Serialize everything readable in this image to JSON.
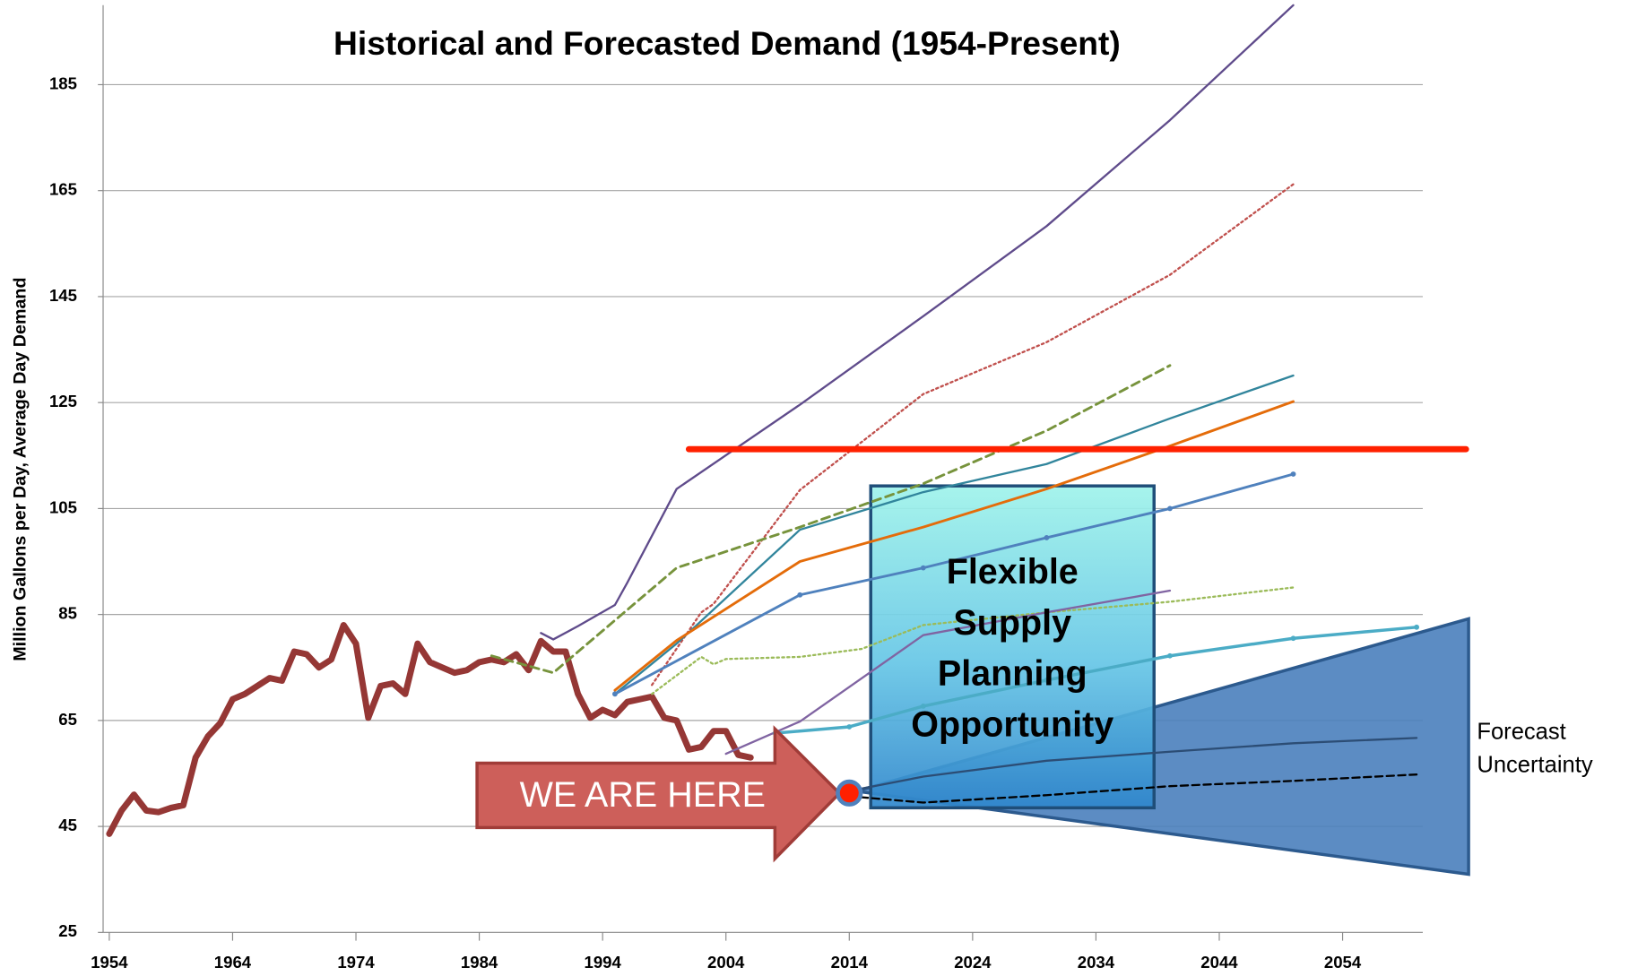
{
  "chart_data": {
    "type": "line",
    "title": "Historical and Forecasted Demand (1954-Present)",
    "y_label": "Million Gallons per Day, Average Day Demand",
    "xlim": [
      1953.5,
      2060.5
    ],
    "ylim": [
      25,
      200
    ],
    "xticks": [
      1954,
      1964,
      1974,
      1984,
      1994,
      2004,
      2014,
      2024,
      2034,
      2044,
      2054
    ],
    "yticks": [
      25,
      45,
      65,
      85,
      105,
      125,
      145,
      165,
      185
    ],
    "grid": true,
    "series": [
      {
        "color": "#953735",
        "width": 6,
        "x": [
          1954,
          1955,
          1956,
          1957,
          1958,
          1959,
          1960,
          1961,
          1962,
          1963,
          1964,
          1965,
          1966,
          1967,
          1968,
          1969,
          1970,
          1971,
          1972,
          1973,
          1974,
          1975,
          1976,
          1977,
          1978,
          1979,
          1980,
          1981,
          1982,
          1983,
          1984,
          1985,
          1986,
          1987,
          1988,
          1989,
          1990,
          1991,
          1992,
          1993,
          1994,
          1995,
          1996,
          1997,
          1998,
          1999,
          2000,
          2001,
          2002,
          2003,
          2004,
          2005,
          2006
        ],
        "values": [
          43.6,
          48,
          51,
          48,
          47.7,
          48.5,
          49,
          58,
          62,
          64.5,
          69,
          70,
          71.5,
          73,
          72.5,
          78,
          77.5,
          75,
          76.5,
          83,
          79.5,
          65.5,
          71.5,
          72,
          70,
          79.5,
          76,
          75,
          74,
          74.5,
          76,
          76.5,
          76,
          77.5,
          74.5,
          80,
          78,
          78,
          70,
          65.5,
          67,
          66,
          68.5,
          69,
          69.5,
          65.5,
          65,
          59.5,
          60,
          63,
          63,
          58.5,
          58
        ]
      },
      {
        "color": "#5f4b8b",
        "width": 2,
        "x": [
          1989,
          1990,
          1992,
          1995,
          1996,
          2000,
          2010,
          2020,
          2030,
          2040,
          2050
        ],
        "values": [
          81.5,
          80.3,
          82.8,
          86.8,
          91,
          108.7,
          124.6,
          141.3,
          158.3,
          178.3,
          200
        ]
      },
      {
        "color": "#c0504d",
        "width": 2,
        "dash": "2 3",
        "x": [
          1998,
          2002,
          2003,
          2010,
          2020,
          2030,
          2040,
          2050
        ],
        "values": [
          71.7,
          85.4,
          87,
          108.5,
          126.6,
          136.4,
          149.1,
          166.2
        ]
      },
      {
        "color": "#77933c",
        "width": 2.5,
        "dash": "8 5",
        "x": [
          1985,
          1990,
          2000,
          2010,
          2020,
          2030,
          2040
        ],
        "values": [
          77.2,
          74,
          93.8,
          101.5,
          109.7,
          119.7,
          132
        ]
      },
      {
        "color": "#31859c",
        "width": 2,
        "x": [
          1995,
          2000,
          2010,
          2020,
          2030,
          2040,
          2050
        ],
        "values": [
          70,
          79.5,
          101,
          108.1,
          113.4,
          122,
          130.1
        ]
      },
      {
        "color": "#e46c0a",
        "width": 2.5,
        "x": [
          1995,
          2000,
          2010,
          2020,
          2030,
          2040,
          2050
        ],
        "values": [
          70.7,
          80.1,
          95,
          101.5,
          108.7,
          116.8,
          125.2
        ]
      },
      {
        "color": "#4f81bd",
        "width": 2.5,
        "markers": true,
        "x": [
          1995,
          2010,
          2020,
          2030,
          2040,
          2050
        ],
        "values": [
          70,
          88.7,
          93.8,
          99.5,
          105,
          111.5
        ]
      },
      {
        "color": "#9bbb59",
        "width": 2,
        "dash": "2 3",
        "x": [
          1998,
          2002,
          2003,
          2004,
          2010,
          2015,
          2020,
          2030,
          2040,
          2050
        ],
        "values": [
          70,
          77,
          75.6,
          76.6,
          77,
          78.5,
          83,
          85.4,
          87.4,
          90.1
        ]
      },
      {
        "color": "#8064a2",
        "width": 2,
        "x": [
          2004,
          2010,
          2020,
          2030,
          2040
        ],
        "values": [
          58.7,
          64.8,
          81.1,
          85.4,
          89.5
        ]
      },
      {
        "color": "#4bacc6",
        "width": 3,
        "markers": true,
        "x": [
          2008,
          2014,
          2020,
          2030,
          2040,
          2050,
          2060
        ],
        "values": [
          62.6,
          63.8,
          67.7,
          72.6,
          77.2,
          80.5,
          82.6
        ]
      },
      {
        "color": "#2c4d75",
        "width": 2,
        "x": [
          2014,
          2020,
          2030,
          2040,
          2050,
          2060
        ],
        "values": [
          51.7,
          54.4,
          57.4,
          59.1,
          60.7,
          61.7
        ]
      },
      {
        "color": "#000000",
        "width": 2,
        "dash": "7 4",
        "x": [
          2014,
          2020,
          2030,
          2040,
          2050,
          2060
        ],
        "values": [
          50.7,
          49.5,
          50.9,
          52.6,
          53.6,
          54.8
        ]
      },
      {
        "color": "#ff2000",
        "width": 6,
        "x": [
          2001,
          2064
        ],
        "values": [
          116.2,
          116.2
        ]
      }
    ],
    "box_text": [
      "Flexible",
      "Supply",
      "Planning",
      "Opportunity"
    ],
    "arrow_text": "WE ARE HERE",
    "current_point": {
      "x": 2014,
      "value": 51.3
    },
    "cone_label": [
      "Forecast",
      "Uncertainty"
    ]
  }
}
